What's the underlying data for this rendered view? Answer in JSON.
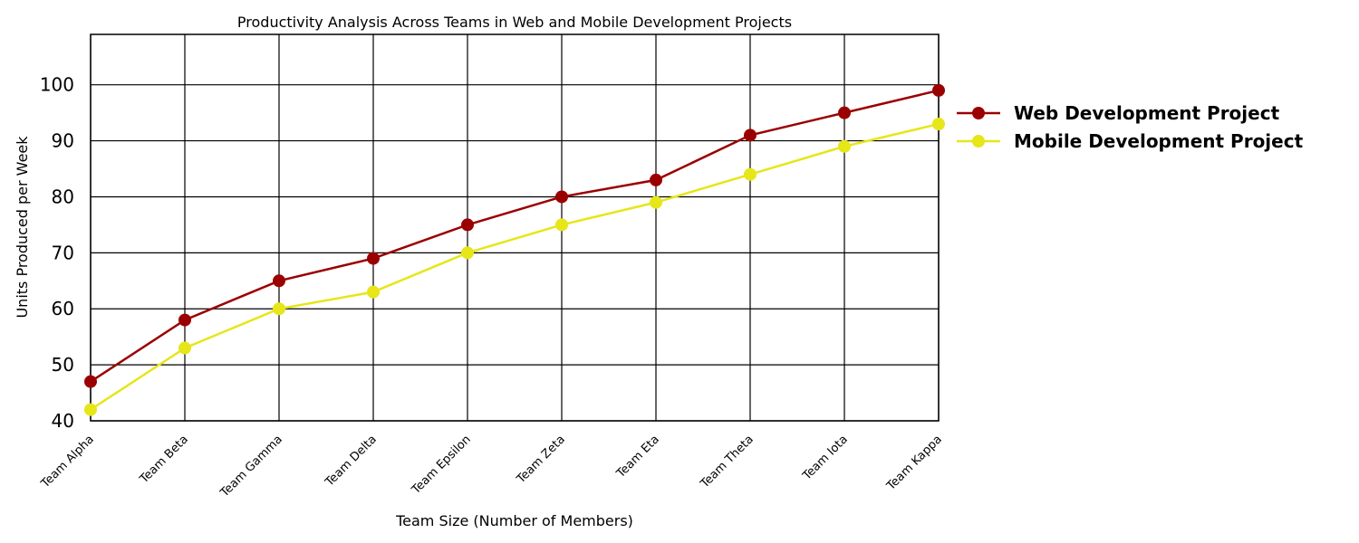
{
  "chart_data": {
    "type": "line",
    "title": "Productivity Analysis Across Teams in Web and Mobile Development Projects",
    "xlabel": "Team Size (Number of Members)",
    "ylabel": "Units Produced per Week",
    "categories": [
      "Team Alpha",
      "Team Beta",
      "Team Gamma",
      "Team Delta",
      "Team Epsilon",
      "Team Zeta",
      "Team Eta",
      "Team Theta",
      "Team Iota",
      "Team Kappa"
    ],
    "ylim": [
      40,
      109
    ],
    "yticks": [
      40,
      50,
      60,
      70,
      80,
      90,
      100
    ],
    "grid": true,
    "legend_position": "right",
    "series": [
      {
        "name": "Web Development Project",
        "color": "#9b0000",
        "values": [
          47,
          58,
          65,
          69,
          75,
          80,
          83,
          91,
          95,
          99
        ]
      },
      {
        "name": "Mobile Development Project",
        "color": "#e6e619",
        "values": [
          42,
          53,
          60,
          63,
          70,
          75,
          79,
          84,
          89,
          93
        ]
      }
    ]
  }
}
